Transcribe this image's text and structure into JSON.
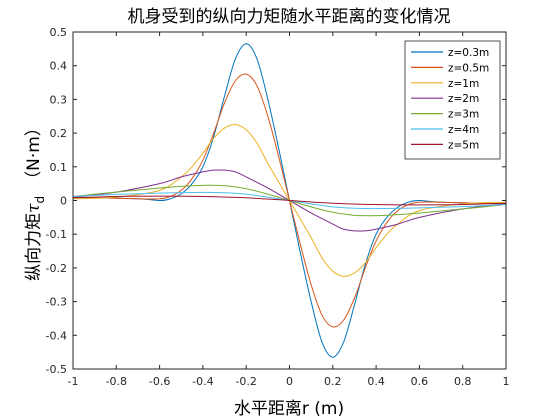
{
  "chart_data": {
    "type": "line",
    "title": "机身受到的纵向力矩随水平距离的变化情况",
    "xlabel": "水平距离r (m)",
    "ylabel": {
      "text": "纵向力矩",
      "symbol": "τ",
      "subscript": "d",
      "unit": "（N·m）"
    },
    "xlim": [
      -1,
      1
    ],
    "ylim": [
      -0.5,
      0.5
    ],
    "xticks": [
      -1,
      -0.8,
      -0.6,
      -0.4,
      -0.2,
      0,
      0.2,
      0.4,
      0.6,
      0.8,
      1
    ],
    "xtick_labels": [
      "-1",
      "-0.8",
      "-0.6",
      "-0.4",
      "-0.2",
      "0",
      "0.2",
      "0.4",
      "0.6",
      "0.8",
      "1"
    ],
    "yticks": [
      -0.5,
      -0.4,
      -0.3,
      -0.2,
      -0.1,
      0,
      0.1,
      0.2,
      0.3,
      0.4,
      0.5
    ],
    "ytick_labels": [
      "-0.5",
      "-0.4",
      "-0.3",
      "-0.2",
      "-0.1",
      "0",
      "0.1",
      "0.2",
      "0.3",
      "0.4",
      "0.5"
    ],
    "grid": false,
    "legend_position": "top-right",
    "series": [
      {
        "name": "z=0.3m",
        "color": "#0072BD",
        "x": [
          -1,
          -0.7,
          -0.6,
          -0.55,
          -0.5,
          -0.45,
          -0.4,
          -0.35,
          -0.3,
          -0.25,
          -0.2,
          -0.15,
          -0.1,
          -0.05,
          0,
          0.05,
          0.1,
          0.15,
          0.2,
          0.25,
          0.3,
          0.35,
          0.4,
          0.45,
          0.5,
          0.55,
          0.6,
          0.7,
          1
        ],
        "y": [
          0.01,
          0.005,
          0.0,
          0.005,
          0.02,
          0.05,
          0.1,
          0.19,
          0.31,
          0.42,
          0.465,
          0.42,
          0.3,
          0.155,
          0,
          -0.155,
          -0.3,
          -0.42,
          -0.465,
          -0.42,
          -0.31,
          -0.19,
          -0.1,
          -0.05,
          -0.02,
          -0.005,
          0.0,
          -0.005,
          -0.01
        ]
      },
      {
        "name": "z=0.5m",
        "color": "#D95319",
        "x": [
          -1,
          -0.7,
          -0.6,
          -0.55,
          -0.5,
          -0.45,
          -0.4,
          -0.35,
          -0.3,
          -0.25,
          -0.2,
          -0.15,
          -0.1,
          -0.05,
          0,
          0.05,
          0.1,
          0.15,
          0.2,
          0.25,
          0.3,
          0.35,
          0.4,
          0.45,
          0.5,
          0.55,
          0.6,
          0.7,
          1
        ],
        "y": [
          0.01,
          0.005,
          0.005,
          0.012,
          0.03,
          0.065,
          0.12,
          0.2,
          0.29,
          0.355,
          0.375,
          0.34,
          0.25,
          0.13,
          0,
          -0.13,
          -0.25,
          -0.34,
          -0.375,
          -0.355,
          -0.29,
          -0.2,
          -0.12,
          -0.065,
          -0.03,
          -0.012,
          -0.005,
          -0.005,
          -0.01
        ]
      },
      {
        "name": "z=1m",
        "color": "#EDB120",
        "x": [
          -1,
          -0.8,
          -0.6,
          -0.5,
          -0.45,
          -0.4,
          -0.35,
          -0.3,
          -0.25,
          -0.2,
          -0.15,
          -0.1,
          -0.05,
          0,
          0.05,
          0.1,
          0.15,
          0.2,
          0.25,
          0.3,
          0.35,
          0.4,
          0.45,
          0.5,
          0.6,
          0.8,
          1
        ],
        "y": [
          0.005,
          0.01,
          0.03,
          0.07,
          0.1,
          0.14,
          0.185,
          0.215,
          0.225,
          0.21,
          0.17,
          0.11,
          0.055,
          0,
          -0.055,
          -0.11,
          -0.17,
          -0.21,
          -0.225,
          -0.215,
          -0.185,
          -0.14,
          -0.1,
          -0.07,
          -0.03,
          -0.01,
          -0.005
        ]
      },
      {
        "name": "z=2m",
        "color": "#7E2F8E",
        "x": [
          -1,
          -0.8,
          -0.6,
          -0.5,
          -0.4,
          -0.35,
          -0.3,
          -0.25,
          -0.2,
          -0.1,
          0,
          0.1,
          0.2,
          0.25,
          0.3,
          0.35,
          0.4,
          0.5,
          0.6,
          0.8,
          1
        ],
        "y": [
          0.01,
          0.025,
          0.05,
          0.07,
          0.085,
          0.09,
          0.09,
          0.085,
          0.07,
          0.037,
          0,
          -0.037,
          -0.07,
          -0.085,
          -0.09,
          -0.09,
          -0.085,
          -0.07,
          -0.05,
          -0.025,
          -0.01
        ]
      },
      {
        "name": "z=3m",
        "color": "#77AC30",
        "x": [
          -1,
          -0.8,
          -0.6,
          -0.5,
          -0.4,
          -0.35,
          -0.3,
          -0.2,
          -0.1,
          0,
          0.1,
          0.2,
          0.3,
          0.35,
          0.4,
          0.5,
          0.6,
          0.8,
          1
        ],
        "y": [
          0.012,
          0.025,
          0.037,
          0.042,
          0.045,
          0.045,
          0.044,
          0.035,
          0.019,
          0,
          -0.019,
          -0.035,
          -0.044,
          -0.045,
          -0.045,
          -0.042,
          -0.037,
          -0.025,
          -0.012
        ]
      },
      {
        "name": "z=4m",
        "color": "#4DBEEE",
        "x": [
          -1,
          -0.8,
          -0.6,
          -0.4,
          -0.3,
          -0.2,
          -0.1,
          0,
          0.1,
          0.2,
          0.3,
          0.4,
          0.6,
          0.8,
          1
        ],
        "y": [
          0.012,
          0.018,
          0.022,
          0.024,
          0.023,
          0.019,
          0.01,
          0,
          -0.01,
          -0.019,
          -0.023,
          -0.024,
          -0.022,
          -0.018,
          -0.012
        ]
      },
      {
        "name": "z=5m",
        "color": "#A2142F",
        "x": [
          -1,
          -0.8,
          -0.6,
          -0.4,
          -0.2,
          0,
          0.2,
          0.4,
          0.6,
          0.8,
          1
        ],
        "y": [
          0.008,
          0.012,
          0.013,
          0.012,
          0.008,
          0,
          -0.008,
          -0.012,
          -0.013,
          -0.012,
          -0.008
        ]
      }
    ]
  }
}
